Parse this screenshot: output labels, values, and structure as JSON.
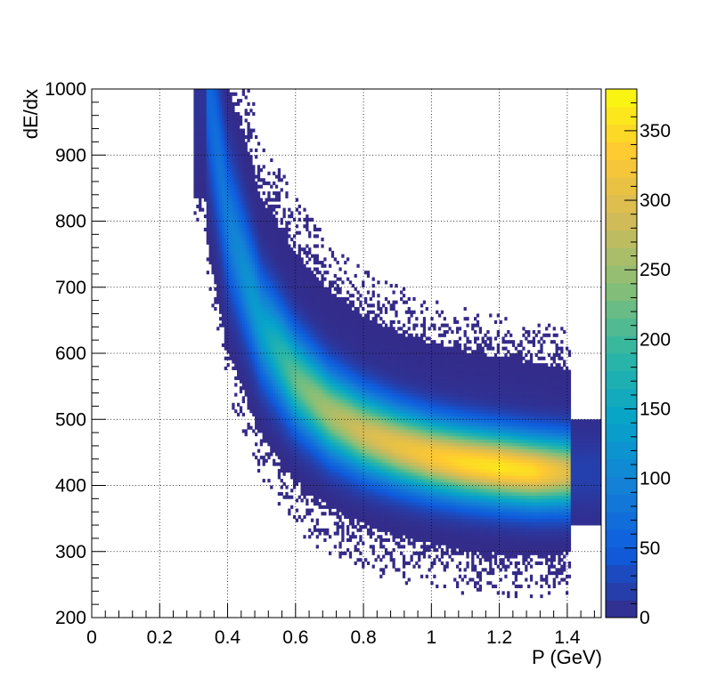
{
  "chart_data": {
    "type": "heatmap",
    "title": "",
    "xlabel": "P (GeV)",
    "ylabel": "dE/dx",
    "xlim": [
      0,
      1.5
    ],
    "ylim": [
      200,
      1000
    ],
    "grid": true,
    "x_ticks": [
      "0",
      "0.2",
      "0.4",
      "0.6",
      "0.8",
      "1",
      "1.2",
      "1.4"
    ],
    "y_ticks": [
      "200",
      "300",
      "400",
      "500",
      "600",
      "700",
      "800",
      "900",
      "1000"
    ],
    "colorbar": {
      "range": [
        0,
        380
      ],
      "ticks": [
        "0",
        "50",
        "100",
        "150",
        "200",
        "250",
        "300",
        "350"
      ],
      "palette": [
        "#352a87",
        "#0f5cdd",
        "#1481d6",
        "#06a4ca",
        "#2eb7a4",
        "#87bf77",
        "#d1bb59",
        "#fec832",
        "#f9fb0e"
      ]
    },
    "band": {
      "description_points_p": [
        0.34,
        0.4,
        0.5,
        0.6,
        0.7,
        0.8,
        0.9,
        1.0,
        1.1,
        1.2,
        1.3,
        1.4
      ],
      "peak_dedx": [
        1000,
        800,
        640,
        560,
        510,
        480,
        460,
        445,
        435,
        428,
        422,
        420
      ],
      "peak_counts": [
        60,
        90,
        140,
        220,
        260,
        290,
        310,
        330,
        350,
        360,
        350,
        300
      ]
    }
  }
}
